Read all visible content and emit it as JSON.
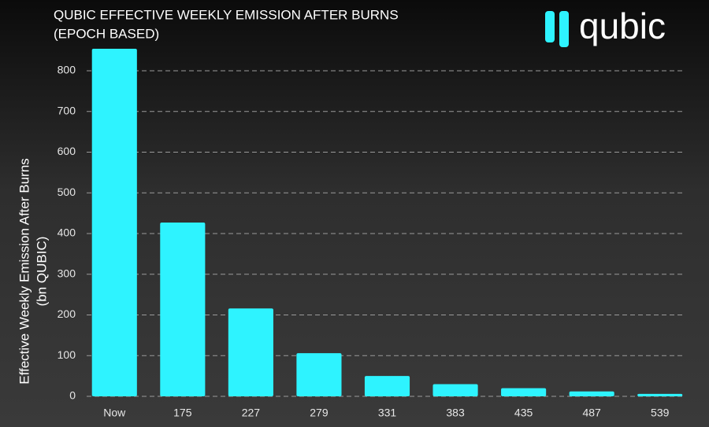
{
  "chart_data": {
    "type": "bar",
    "title": [
      "QUBIC EFFECTIVE WEEKLY EMISSION AFTER BURNS",
      "(EPOCH BASED)"
    ],
    "logo": "qubic",
    "y_label": [
      "Effective Weekly Emission After Burns",
      "(bn QUBIC)"
    ],
    "categories": [
      "Now",
      "175",
      "227",
      "279",
      "331",
      "383",
      "435",
      "487",
      "539"
    ],
    "values": [
      854,
      427,
      216,
      106,
      50,
      30,
      20,
      12,
      6
    ],
    "color": "#2ef3ff",
    "ylim": [
      0,
      900
    ],
    "yticks": [
      0,
      100,
      200,
      300,
      400,
      500,
      600,
      700,
      800
    ],
    "grid": true
  }
}
